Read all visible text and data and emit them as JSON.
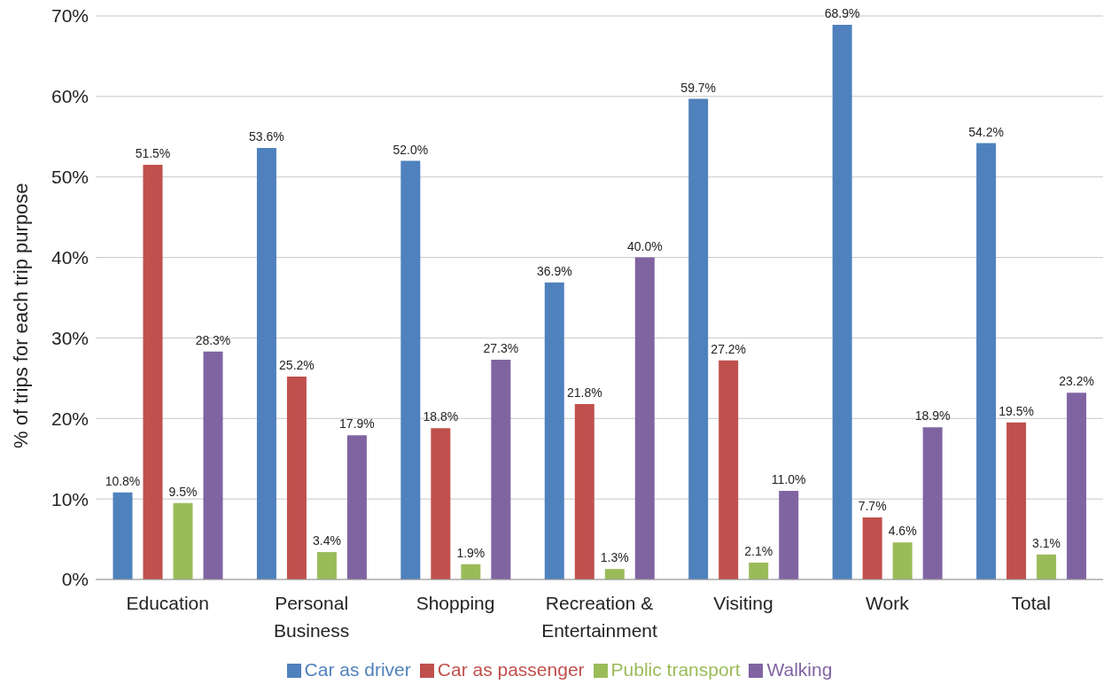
{
  "chart_data": {
    "type": "bar",
    "ylabel": "% of trips for each trip purpose",
    "categories": [
      "Education",
      "Personal Business",
      "Shopping",
      "Recreation & Entertainment",
      "Visiting",
      "Work",
      "Total"
    ],
    "series": [
      {
        "name": "Car as driver",
        "color": "#4f81bd",
        "values": [
          10.8,
          53.6,
          52.0,
          36.9,
          59.7,
          68.9,
          54.2
        ],
        "value_labels": [
          "10.8%",
          "53.6%",
          "52.0%",
          "36.9%",
          "59.7%",
          "68.9%",
          "54.2%"
        ]
      },
      {
        "name": "Car as passenger",
        "color": "#c0504d",
        "values": [
          51.5,
          25.2,
          18.8,
          21.8,
          27.2,
          7.7,
          19.5
        ],
        "value_labels": [
          "51.5%",
          "25.2%",
          "18.8%",
          "21.8%",
          "27.2%",
          "7.7%",
          "19.5%"
        ]
      },
      {
        "name": "Public transport",
        "color": "#9bbb59",
        "values": [
          9.5,
          3.4,
          1.9,
          1.3,
          2.1,
          4.6,
          3.1
        ],
        "value_labels": [
          "9.5%",
          "3.4%",
          "1.9%",
          "1.3%",
          "2.1%",
          "4.6%",
          "3.1%"
        ]
      },
      {
        "name": "Walking",
        "color": "#8064a2",
        "values": [
          28.3,
          17.9,
          27.3,
          40.0,
          11.0,
          18.9,
          23.2
        ],
        "value_labels": [
          "28.3%",
          "17.9%",
          "27.3%",
          "40.0%",
          "11.0%",
          "18.9%",
          "23.2%"
        ]
      }
    ],
    "ylim": [
      0,
      70
    ],
    "yticks": [
      {
        "value": 0,
        "label": "0%"
      },
      {
        "value": 10,
        "label": "10%"
      },
      {
        "value": 20,
        "label": "20%"
      },
      {
        "value": 30,
        "label": "30%"
      },
      {
        "value": 40,
        "label": "40%"
      },
      {
        "value": 50,
        "label": "50%"
      },
      {
        "value": 60,
        "label": "60%"
      },
      {
        "value": 70,
        "label": "70%"
      }
    ],
    "grid": "y",
    "legend": "bottom"
  }
}
